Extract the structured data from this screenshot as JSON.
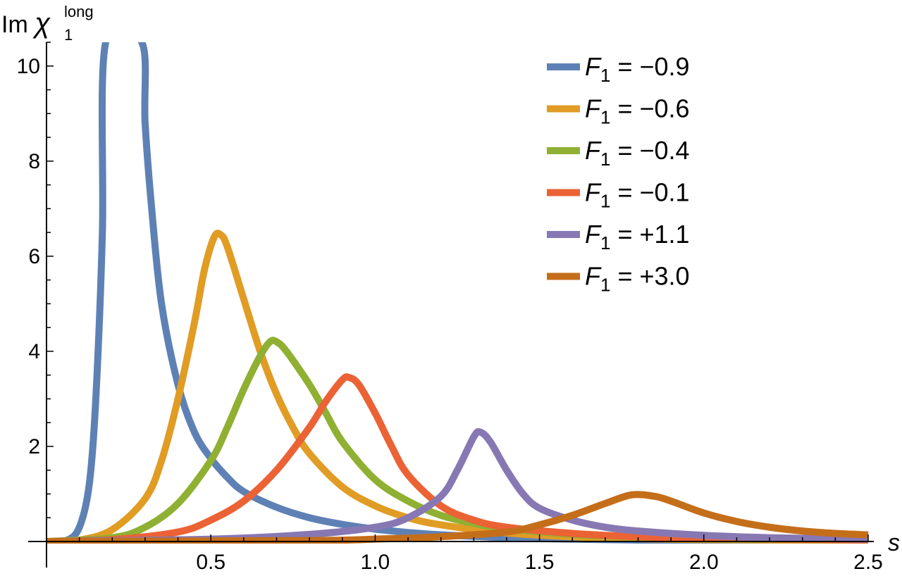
{
  "chart_data": {
    "type": "line",
    "xlabel": "s",
    "ylabel": {
      "prefix": "Im",
      "symbol": "χ",
      "subscript": "1",
      "superscript": "long"
    },
    "xlim": [
      0,
      2.5
    ],
    "ylim": [
      0,
      10.5
    ],
    "x_ticks": [
      {
        "value": 0.5,
        "label": "0.5"
      },
      {
        "value": 1.0,
        "label": "1.0"
      },
      {
        "value": 1.5,
        "label": "1.5"
      },
      {
        "value": 2.0,
        "label": "2.0"
      },
      {
        "value": 2.5,
        "label": "2.5"
      }
    ],
    "y_ticks": [
      {
        "value": 2,
        "label": "2"
      },
      {
        "value": 4,
        "label": "4"
      },
      {
        "value": 6,
        "label": "6"
      },
      {
        "value": 8,
        "label": "8"
      },
      {
        "value": 10,
        "label": "10"
      }
    ],
    "grid": false,
    "legend_position": "top-right",
    "series": [
      {
        "name": "F1 = −0.9",
        "legend": {
          "symbol": "F",
          "subscript": "1",
          "rest": " = −0.9"
        },
        "color": "#5E81B5",
        "points": [
          [
            0,
            0
          ],
          [
            0.06,
            0.02
          ],
          [
            0.1,
            0.3
          ],
          [
            0.13,
            1.2
          ],
          [
            0.15,
            3.0
          ],
          [
            0.17,
            6.5
          ],
          [
            0.18,
            10.5
          ],
          [
            0.29,
            10.5
          ],
          [
            0.3,
            8.8
          ],
          [
            0.32,
            7.0
          ],
          [
            0.35,
            5.0
          ],
          [
            0.4,
            3.3
          ],
          [
            0.45,
            2.3
          ],
          [
            0.5,
            1.75
          ],
          [
            0.55,
            1.35
          ],
          [
            0.6,
            1.05
          ],
          [
            0.7,
            0.72
          ],
          [
            0.8,
            0.5
          ],
          [
            0.9,
            0.36
          ],
          [
            1.0,
            0.26
          ],
          [
            1.1,
            0.19
          ],
          [
            1.2,
            0.14
          ],
          [
            1.4,
            0.08
          ],
          [
            1.6,
            0.05
          ],
          [
            1.8,
            0.03
          ],
          [
            2.0,
            0.02
          ],
          [
            2.2,
            0.01
          ],
          [
            2.5,
            0.0
          ]
        ]
      },
      {
        "name": "F1 = −0.6",
        "legend": {
          "symbol": "F",
          "subscript": "1",
          "rest": " = −0.6"
        },
        "color": "#E19C24",
        "points": [
          [
            0,
            0
          ],
          [
            0.1,
            0.03
          ],
          [
            0.2,
            0.25
          ],
          [
            0.3,
            0.9
          ],
          [
            0.35,
            1.7
          ],
          [
            0.4,
            3.0
          ],
          [
            0.45,
            4.6
          ],
          [
            0.48,
            5.7
          ],
          [
            0.51,
            6.4
          ],
          [
            0.53,
            6.45
          ],
          [
            0.55,
            6.2
          ],
          [
            0.6,
            5.1
          ],
          [
            0.65,
            4.0
          ],
          [
            0.7,
            3.1
          ],
          [
            0.75,
            2.4
          ],
          [
            0.8,
            1.85
          ],
          [
            0.9,
            1.15
          ],
          [
            1.0,
            0.75
          ],
          [
            1.1,
            0.5
          ],
          [
            1.2,
            0.35
          ],
          [
            1.4,
            0.18
          ],
          [
            1.6,
            0.1
          ],
          [
            1.8,
            0.06
          ],
          [
            2.0,
            0.04
          ],
          [
            2.5,
            0.02
          ]
        ]
      },
      {
        "name": "F1 = −0.4",
        "legend": {
          "symbol": "F",
          "subscript": "1",
          "rest": " = −0.4"
        },
        "color": "#8FB032",
        "points": [
          [
            0,
            0
          ],
          [
            0.2,
            0.08
          ],
          [
            0.3,
            0.3
          ],
          [
            0.4,
            0.8
          ],
          [
            0.5,
            1.7
          ],
          [
            0.55,
            2.4
          ],
          [
            0.6,
            3.2
          ],
          [
            0.65,
            3.9
          ],
          [
            0.68,
            4.2
          ],
          [
            0.7,
            4.2
          ],
          [
            0.73,
            4.0
          ],
          [
            0.8,
            3.3
          ],
          [
            0.85,
            2.7
          ],
          [
            0.9,
            2.1
          ],
          [
            1.0,
            1.3
          ],
          [
            1.1,
            0.85
          ],
          [
            1.2,
            0.55
          ],
          [
            1.3,
            0.38
          ],
          [
            1.4,
            0.27
          ],
          [
            1.6,
            0.15
          ],
          [
            1.8,
            0.09
          ],
          [
            2.0,
            0.06
          ],
          [
            2.5,
            0.03
          ]
        ]
      },
      {
        "name": "F1 = −0.1",
        "legend": {
          "symbol": "F",
          "subscript": "1",
          "rest": " = −0.1"
        },
        "color": "#EB6235",
        "points": [
          [
            0,
            0
          ],
          [
            0.2,
            0.04
          ],
          [
            0.4,
            0.2
          ],
          [
            0.5,
            0.45
          ],
          [
            0.6,
            0.85
          ],
          [
            0.7,
            1.5
          ],
          [
            0.8,
            2.4
          ],
          [
            0.85,
            2.95
          ],
          [
            0.9,
            3.4
          ],
          [
            0.92,
            3.45
          ],
          [
            0.95,
            3.3
          ],
          [
            1.0,
            2.7
          ],
          [
            1.05,
            2.0
          ],
          [
            1.1,
            1.4
          ],
          [
            1.2,
            0.75
          ],
          [
            1.3,
            0.45
          ],
          [
            1.4,
            0.3
          ],
          [
            1.6,
            0.17
          ],
          [
            1.8,
            0.1
          ],
          [
            2.0,
            0.07
          ],
          [
            2.5,
            0.03
          ]
        ]
      },
      {
        "name": "F1 = +1.1",
        "legend": {
          "symbol": "F",
          "subscript": "1",
          "rest": " = +1.1"
        },
        "color": "#8778B3",
        "points": [
          [
            0,
            0
          ],
          [
            0.5,
            0.05
          ],
          [
            0.8,
            0.15
          ],
          [
            1.0,
            0.3
          ],
          [
            1.1,
            0.5
          ],
          [
            1.2,
            0.95
          ],
          [
            1.25,
            1.5
          ],
          [
            1.3,
            2.2
          ],
          [
            1.32,
            2.3
          ],
          [
            1.35,
            2.1
          ],
          [
            1.4,
            1.5
          ],
          [
            1.45,
            1.0
          ],
          [
            1.5,
            0.7
          ],
          [
            1.6,
            0.45
          ],
          [
            1.7,
            0.3
          ],
          [
            1.8,
            0.22
          ],
          [
            2.0,
            0.13
          ],
          [
            2.2,
            0.08
          ],
          [
            2.5,
            0.05
          ]
        ]
      },
      {
        "name": "F1 = +3.0",
        "legend": {
          "symbol": "F",
          "subscript": "1",
          "rest": " = +3.0"
        },
        "color": "#C56E1A",
        "points": [
          [
            0,
            0
          ],
          [
            0.8,
            0.02
          ],
          [
            1.0,
            0.05
          ],
          [
            1.2,
            0.1
          ],
          [
            1.4,
            0.2
          ],
          [
            1.5,
            0.35
          ],
          [
            1.6,
            0.55
          ],
          [
            1.7,
            0.8
          ],
          [
            1.78,
            0.98
          ],
          [
            1.85,
            0.95
          ],
          [
            1.9,
            0.85
          ],
          [
            2.0,
            0.6
          ],
          [
            2.1,
            0.42
          ],
          [
            2.2,
            0.3
          ],
          [
            2.3,
            0.22
          ],
          [
            2.4,
            0.17
          ],
          [
            2.5,
            0.14
          ]
        ]
      }
    ]
  }
}
